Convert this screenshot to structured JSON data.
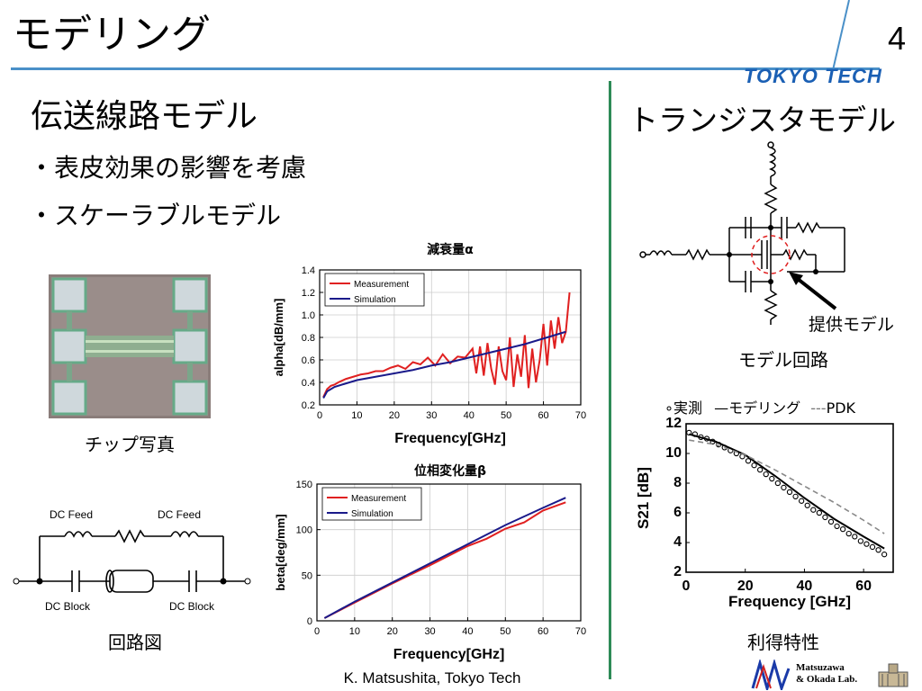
{
  "header": {
    "title": "モデリング",
    "page_number": "4",
    "logo": "TOKYO TECH"
  },
  "left": {
    "heading": "伝送線路モデル",
    "bullets": [
      "・表皮効果の影響を考慮",
      "・スケーラブルモデル"
    ],
    "chip_caption": "チップ写真",
    "circuit_caption": "回路図",
    "circuit_labels": {
      "dc_feed_left": "DC Feed",
      "dc_feed_right": "DC Feed",
      "dc_block_left": "DC Block",
      "dc_block_right": "DC Block"
    }
  },
  "right": {
    "heading": "トランジスタモデル",
    "provided_label": "提供モデル",
    "model_circuit_caption": "モデル回路",
    "s21_caption": "利得特性"
  },
  "footer": {
    "author": "K. Matsushita, Tokyo Tech",
    "lab": [
      "Matsuzawa",
      "& Okada Lab."
    ]
  },
  "colors": {
    "measurement": "#e02020",
    "simulation": "#1a1a8a",
    "rule": "#4a90c8",
    "divider": "#2e8b57"
  },
  "chart_data": [
    {
      "type": "line",
      "title": "減衰量α",
      "xlabel": "Frequency[GHz]",
      "ylabel": "alpha[dB/mm]",
      "xlim": [
        0,
        70
      ],
      "ylim": [
        0.2,
        1.4
      ],
      "xticks": [
        0,
        10,
        20,
        30,
        40,
        50,
        60,
        70
      ],
      "yticks": [
        0.2,
        0.4,
        0.6,
        0.8,
        1.0,
        1.2,
        1.4
      ],
      "legend": "top-left",
      "series": [
        {
          "name": "Measurement",
          "color": "#e02020",
          "x": [
            1,
            2,
            3,
            4,
            5,
            7,
            9,
            11,
            13,
            15,
            17,
            19,
            21,
            23,
            25,
            27,
            29,
            31,
            33,
            35,
            37,
            39,
            41,
            42,
            43,
            44,
            45,
            46,
            47,
            48,
            49,
            50,
            51,
            52,
            53,
            54,
            55,
            56,
            57,
            58,
            59,
            60,
            61,
            62,
            63,
            64,
            65,
            66,
            67
          ],
          "y": [
            0.27,
            0.34,
            0.37,
            0.38,
            0.4,
            0.43,
            0.45,
            0.47,
            0.48,
            0.5,
            0.5,
            0.53,
            0.55,
            0.52,
            0.58,
            0.56,
            0.62,
            0.55,
            0.65,
            0.57,
            0.63,
            0.62,
            0.7,
            0.48,
            0.72,
            0.46,
            0.75,
            0.52,
            0.38,
            0.72,
            0.5,
            0.42,
            0.8,
            0.36,
            0.65,
            0.45,
            0.82,
            0.35,
            0.7,
            0.4,
            0.6,
            0.92,
            0.55,
            0.95,
            0.7,
            0.98,
            0.75,
            0.85,
            1.2
          ]
        },
        {
          "name": "Simulation",
          "color": "#1a1a8a",
          "x": [
            1,
            2,
            4,
            7,
            10,
            15,
            20,
            25,
            30,
            35,
            40,
            45,
            50,
            55,
            60,
            66
          ],
          "y": [
            0.26,
            0.32,
            0.36,
            0.39,
            0.42,
            0.45,
            0.48,
            0.51,
            0.55,
            0.58,
            0.62,
            0.66,
            0.7,
            0.74,
            0.79,
            0.85
          ]
        }
      ]
    },
    {
      "type": "line",
      "title": "位相変化量β",
      "xlabel": "Frequency[GHz]",
      "ylabel": "beta[deg/mm]",
      "xlim": [
        0,
        70
      ],
      "ylim": [
        0,
        150
      ],
      "xticks": [
        0,
        10,
        20,
        30,
        40,
        50,
        60,
        70
      ],
      "yticks": [
        0,
        50,
        100,
        150
      ],
      "legend": "top-left",
      "series": [
        {
          "name": "Measurement",
          "color": "#e02020",
          "x": [
            2,
            10,
            20,
            30,
            40,
            45,
            50,
            55,
            60,
            66
          ],
          "y": [
            3,
            20,
            41,
            61,
            82,
            90,
            101,
            108,
            121,
            130
          ]
        },
        {
          "name": "Simulation",
          "color": "#1a1a8a",
          "x": [
            2,
            10,
            20,
            30,
            40,
            50,
            60,
            66
          ],
          "y": [
            3,
            21,
            42,
            63,
            84,
            105,
            124,
            135
          ]
        }
      ]
    },
    {
      "type": "line",
      "xlabel": "Frequency [GHz]",
      "ylabel": "S21 [dB]",
      "xlim": [
        0,
        70
      ],
      "ylim": [
        2,
        12
      ],
      "xticks": [
        0,
        20,
        40,
        60
      ],
      "yticks": [
        2,
        4,
        6,
        8,
        10,
        12
      ],
      "legend": "top",
      "series": [
        {
          "name": "実測",
          "style": "markers",
          "x": [
            1,
            3,
            5,
            7,
            9,
            11,
            13,
            15,
            17,
            19,
            21,
            23,
            25,
            27,
            29,
            31,
            33,
            35,
            37,
            39,
            41,
            43,
            45,
            47,
            49,
            51,
            53,
            55,
            57,
            59,
            61,
            63,
            65,
            67
          ],
          "y": [
            11.4,
            11.3,
            11.1,
            11.0,
            10.8,
            10.6,
            10.4,
            10.2,
            10.0,
            9.8,
            9.5,
            9.2,
            8.9,
            8.6,
            8.3,
            8.0,
            7.7,
            7.4,
            7.1,
            6.8,
            6.5,
            6.2,
            6.0,
            5.7,
            5.4,
            5.1,
            4.9,
            4.6,
            4.4,
            4.1,
            3.9,
            3.7,
            3.5,
            3.2
          ]
        },
        {
          "name": "モデリング",
          "style": "solid",
          "x": [
            1,
            10,
            20,
            30,
            40,
            50,
            60,
            67
          ],
          "y": [
            11.3,
            10.8,
            9.9,
            8.5,
            7.0,
            5.6,
            4.4,
            3.6
          ]
        },
        {
          "name": "PDK",
          "style": "dashed",
          "x": [
            1,
            10,
            20,
            30,
            40,
            50,
            60,
            67
          ],
          "y": [
            10.9,
            10.6,
            9.9,
            8.9,
            7.8,
            6.7,
            5.5,
            4.6
          ]
        }
      ]
    }
  ]
}
